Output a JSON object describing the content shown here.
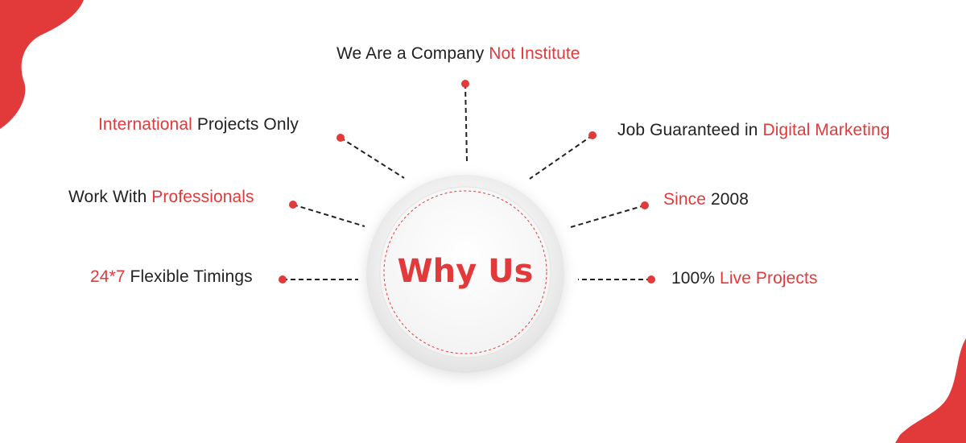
{
  "colors": {
    "accent": "#e23a3a",
    "text": "#222222",
    "connector": "#222222",
    "circle_outer": "#ececec",
    "circle_inner": "#f7f7f7"
  },
  "center": {
    "label": "Why Us"
  },
  "items": [
    {
      "id": "company",
      "prefix": "We Are a Company ",
      "highlight": "Not Institute",
      "suffix": ""
    },
    {
      "id": "international",
      "prefix": "",
      "highlight": "International",
      "suffix": " Projects Only"
    },
    {
      "id": "job",
      "prefix": "Job Guaranteed in ",
      "highlight": "Digital Marketing",
      "suffix": ""
    },
    {
      "id": "professionals",
      "prefix": "Work With ",
      "highlight": "Professionals",
      "suffix": ""
    },
    {
      "id": "since",
      "prefix": "",
      "highlight": "Since",
      "suffix": " 2008"
    },
    {
      "id": "timings",
      "prefix": "",
      "highlight": "24*7",
      "suffix": " Flexible Timings"
    },
    {
      "id": "live",
      "prefix": "100% ",
      "highlight": "Live Projects",
      "suffix": ""
    }
  ]
}
